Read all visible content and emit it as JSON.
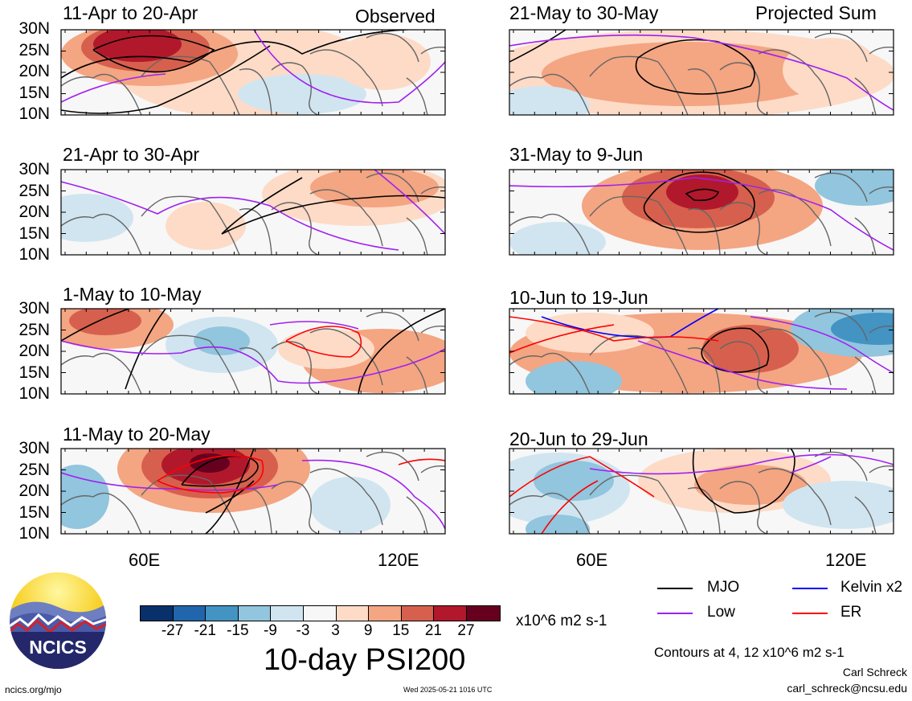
{
  "header": {
    "label_left": "Observed",
    "label_right": "Projected Sum"
  },
  "panels": [
    {
      "title": "11-Apr to 20-Apr"
    },
    {
      "title": "21-Apr to 30-Apr"
    },
    {
      "title": "1-May to 10-May"
    },
    {
      "title": "11-May to 20-May"
    },
    {
      "title": "21-May to 30-May"
    },
    {
      "title": "31-May to 9-Jun"
    },
    {
      "title": "10-Jun to 19-Jun"
    },
    {
      "title": "20-Jun to 29-Jun"
    }
  ],
  "axes": {
    "lat_labels": [
      "30N",
      "25N",
      "20N",
      "15N",
      "10N"
    ],
    "lon_labels": [
      "60E",
      "120E"
    ]
  },
  "colorbar": {
    "ticks": [
      "-27",
      "-21",
      "-15",
      "-9",
      "-3",
      "3",
      "9",
      "15",
      "21",
      "27"
    ],
    "colors": [
      "#08306b",
      "#2166ac",
      "#4393c3",
      "#92c5de",
      "#d1e5f0",
      "#f7f7f7",
      "#fddbc7",
      "#f4a582",
      "#d6604d",
      "#b2182b",
      "#67001f"
    ],
    "units": "x10^6 m2 s-1"
  },
  "title": "10-day PSI200",
  "legend": {
    "mjo": {
      "label": "MJO",
      "color": "#000000"
    },
    "kelvin": {
      "label": "Kelvin x2",
      "color": "#0000ff"
    },
    "low": {
      "label": "Low",
      "color": "#a020f0"
    },
    "er": {
      "label": "ER",
      "color": "#ff0000"
    }
  },
  "contours_note": "Contours at 4, 12 x10^6 m2 s-1",
  "credit": {
    "name": "Carl Schreck",
    "email": "carl_schreck@ncsu.edu"
  },
  "logo": {
    "text": "NCICS"
  },
  "footer": {
    "site": "ncics.org/mjo",
    "timestamp": "Wed 2025-05-21 1016 UTC"
  }
}
